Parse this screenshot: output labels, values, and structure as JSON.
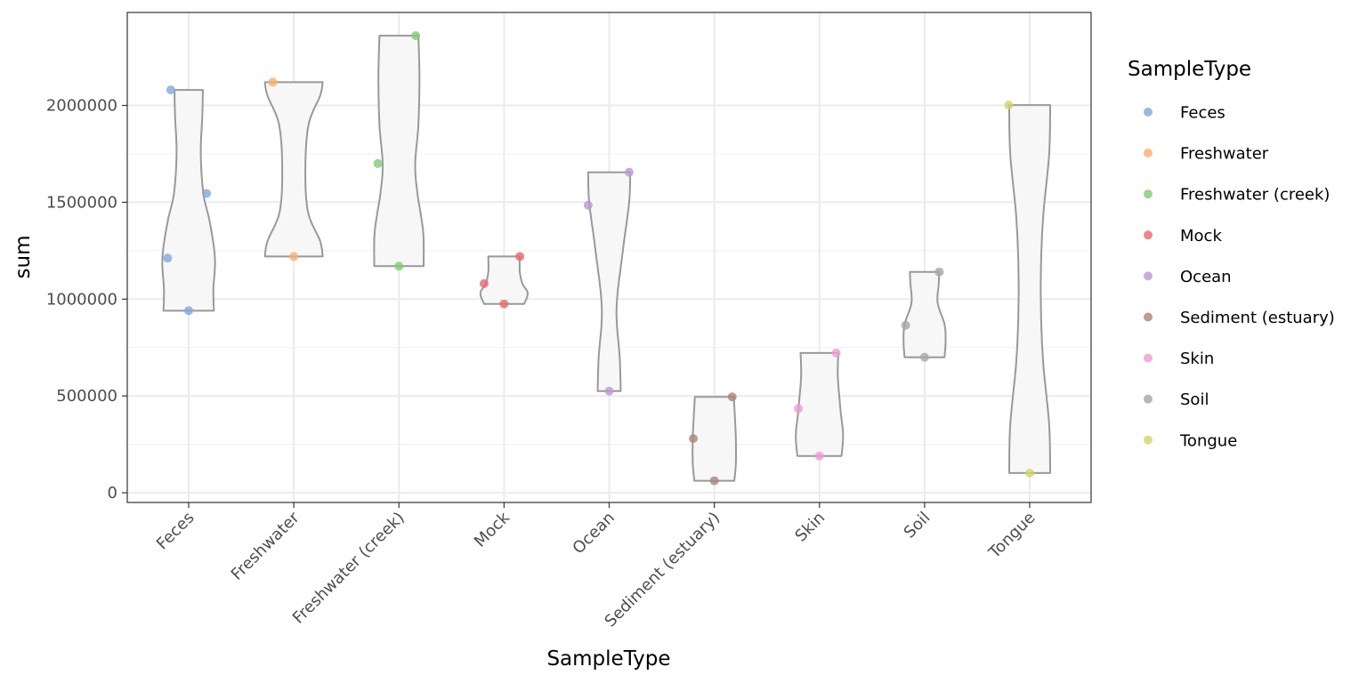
{
  "chart_data": {
    "type": "violin",
    "xlabel": "SampleType",
    "ylabel": "sum",
    "ylim": [
      -50000,
      2480000
    ],
    "yticks": [
      0,
      500000,
      1000000,
      1500000,
      2000000
    ],
    "ytick_labels": [
      "0",
      "500000",
      "1000000",
      "1500000",
      "2000000"
    ],
    "grid": true,
    "legend": {
      "title": "SampleType",
      "position": "right"
    },
    "categories": [
      "Feces",
      "Freshwater",
      "Freshwater (creek)",
      "Mock",
      "Ocean",
      "Sediment (estuary)",
      "Skin",
      "Soil",
      "Tongue"
    ],
    "colors": [
      "#7fa8d8",
      "#fdad6b",
      "#7fcc72",
      "#e8686b",
      "#b899d3",
      "#a9847b",
      "#ec9bd3",
      "#a6a6a6",
      "#d4d36c"
    ],
    "series": [
      {
        "name": "Feces",
        "points": [
          {
            "x_offset": -0.17,
            "y": 2080000
          },
          {
            "x_offset": 0.17,
            "y": 1545000
          },
          {
            "x_offset": -0.2,
            "y": 1212000
          },
          {
            "x_offset": 0.0,
            "y": 940000
          }
        ]
      },
      {
        "name": "Freshwater",
        "points": [
          {
            "x_offset": -0.2,
            "y": 2120000
          },
          {
            "x_offset": 0.0,
            "y": 1220000
          }
        ]
      },
      {
        "name": "Freshwater (creek)",
        "points": [
          {
            "x_offset": 0.16,
            "y": 2360000
          },
          {
            "x_offset": -0.2,
            "y": 1700000
          },
          {
            "x_offset": 0.0,
            "y": 1170000
          }
        ]
      },
      {
        "name": "Mock",
        "points": [
          {
            "x_offset": 0.15,
            "y": 1220000
          },
          {
            "x_offset": -0.19,
            "y": 1080000
          },
          {
            "x_offset": 0.0,
            "y": 975000
          }
        ]
      },
      {
        "name": "Ocean",
        "points": [
          {
            "x_offset": 0.19,
            "y": 1655000
          },
          {
            "x_offset": -0.2,
            "y": 1485000
          },
          {
            "x_offset": 0.0,
            "y": 525000
          }
        ]
      },
      {
        "name": "Sediment (estuary)",
        "points": [
          {
            "x_offset": 0.17,
            "y": 495000
          },
          {
            "x_offset": -0.2,
            "y": 280000
          },
          {
            "x_offset": 0.0,
            "y": 62000
          }
        ]
      },
      {
        "name": "Skin",
        "points": [
          {
            "x_offset": 0.16,
            "y": 722000
          },
          {
            "x_offset": -0.2,
            "y": 435000
          },
          {
            "x_offset": 0.0,
            "y": 190000
          }
        ]
      },
      {
        "name": "Soil",
        "points": [
          {
            "x_offset": 0.14,
            "y": 1140000
          },
          {
            "x_offset": -0.18,
            "y": 865000
          },
          {
            "x_offset": 0.0,
            "y": 700000
          }
        ]
      },
      {
        "name": "Tongue",
        "points": [
          {
            "x_offset": -0.2,
            "y": 2002000
          },
          {
            "x_offset": 0.0,
            "y": 102000
          }
        ]
      }
    ],
    "violins": [
      {
        "category": "Feces",
        "ymin": 940000,
        "ymax": 2080000,
        "profile": [
          [
            940000,
            0.48
          ],
          [
            1050000,
            0.47
          ],
          [
            1212000,
            0.5
          ],
          [
            1400000,
            0.4
          ],
          [
            1545000,
            0.28
          ],
          [
            1750000,
            0.23
          ],
          [
            1950000,
            0.26
          ],
          [
            2080000,
            0.27
          ]
        ]
      },
      {
        "category": "Freshwater",
        "ymin": 1220000,
        "ymax": 2120000,
        "profile": [
          [
            1220000,
            0.55
          ],
          [
            1300000,
            0.5
          ],
          [
            1450000,
            0.27
          ],
          [
            1670000,
            0.22
          ],
          [
            1900000,
            0.28
          ],
          [
            2050000,
            0.5
          ],
          [
            2120000,
            0.55
          ]
        ]
      },
      {
        "category": "Freshwater (creek)",
        "ymin": 1170000,
        "ymax": 2360000,
        "profile": [
          [
            1170000,
            0.47
          ],
          [
            1350000,
            0.46
          ],
          [
            1550000,
            0.35
          ],
          [
            1700000,
            0.31
          ],
          [
            1900000,
            0.37
          ],
          [
            2150000,
            0.39
          ],
          [
            2360000,
            0.37
          ]
        ]
      },
      {
        "category": "Mock",
        "ymin": 975000,
        "ymax": 1220000,
        "profile": [
          [
            975000,
            0.38
          ],
          [
            1030000,
            0.45
          ],
          [
            1080000,
            0.35
          ],
          [
            1140000,
            0.3
          ],
          [
            1220000,
            0.3
          ]
        ]
      },
      {
        "category": "Ocean",
        "ymin": 525000,
        "ymax": 1655000,
        "profile": [
          [
            525000,
            0.22
          ],
          [
            700000,
            0.2
          ],
          [
            950000,
            0.14
          ],
          [
            1250000,
            0.26
          ],
          [
            1500000,
            0.38
          ],
          [
            1655000,
            0.4
          ]
        ]
      },
      {
        "category": "Sediment (estuary)",
        "ymin": 62000,
        "ymax": 495000,
        "profile": [
          [
            62000,
            0.38
          ],
          [
            150000,
            0.41
          ],
          [
            280000,
            0.41
          ],
          [
            400000,
            0.39
          ],
          [
            495000,
            0.37
          ]
        ]
      },
      {
        "category": "Skin",
        "ymin": 190000,
        "ymax": 722000,
        "profile": [
          [
            190000,
            0.42
          ],
          [
            300000,
            0.45
          ],
          [
            430000,
            0.4
          ],
          [
            600000,
            0.35
          ],
          [
            722000,
            0.36
          ]
        ]
      },
      {
        "category": "Soil",
        "ymin": 700000,
        "ymax": 1140000,
        "profile": [
          [
            700000,
            0.38
          ],
          [
            780000,
            0.4
          ],
          [
            870000,
            0.38
          ],
          [
            980000,
            0.25
          ],
          [
            1080000,
            0.27
          ],
          [
            1140000,
            0.28
          ]
        ]
      },
      {
        "category": "Tongue",
        "ymin": 102000,
        "ymax": 2002000,
        "profile": [
          [
            102000,
            0.39
          ],
          [
            350000,
            0.37
          ],
          [
            700000,
            0.25
          ],
          [
            1050000,
            0.21
          ],
          [
            1400000,
            0.25
          ],
          [
            1750000,
            0.37
          ],
          [
            2002000,
            0.39
          ]
        ]
      }
    ]
  }
}
